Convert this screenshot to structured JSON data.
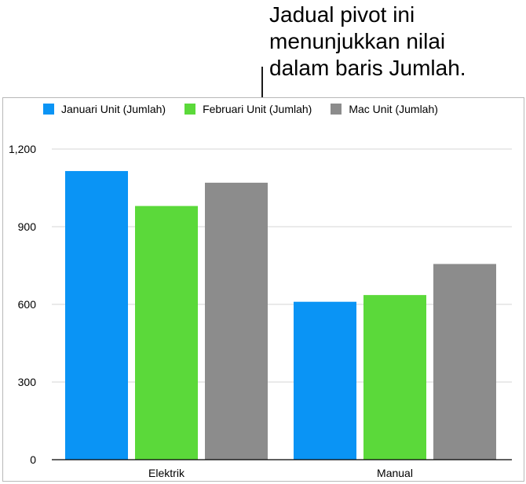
{
  "annotation": {
    "lines": [
      "Jadual pivot ini",
      "menunjukkan nilai",
      "dalam baris Jumlah."
    ]
  },
  "chart_data": {
    "type": "bar",
    "categories": [
      "Elektrik",
      "Manual"
    ],
    "series": [
      {
        "name": "Januari Unit (Jumlah)",
        "values": [
          1115,
          610
        ],
        "color": "#0a94f5"
      },
      {
        "name": "Februari Unit (Jumlah)",
        "values": [
          980,
          636
        ],
        "color": "#5bd93a"
      },
      {
        "name": "Mac Unit (Jumlah)",
        "values": [
          1070,
          756
        ],
        "color": "#8c8c8c"
      }
    ],
    "ylim": [
      0,
      1200
    ],
    "yticks": [
      0,
      300,
      600,
      900,
      1200
    ],
    "ytick_labels": [
      "0",
      "300",
      "600",
      "900",
      "1,200"
    ],
    "grid": true,
    "legend_position": "top"
  }
}
